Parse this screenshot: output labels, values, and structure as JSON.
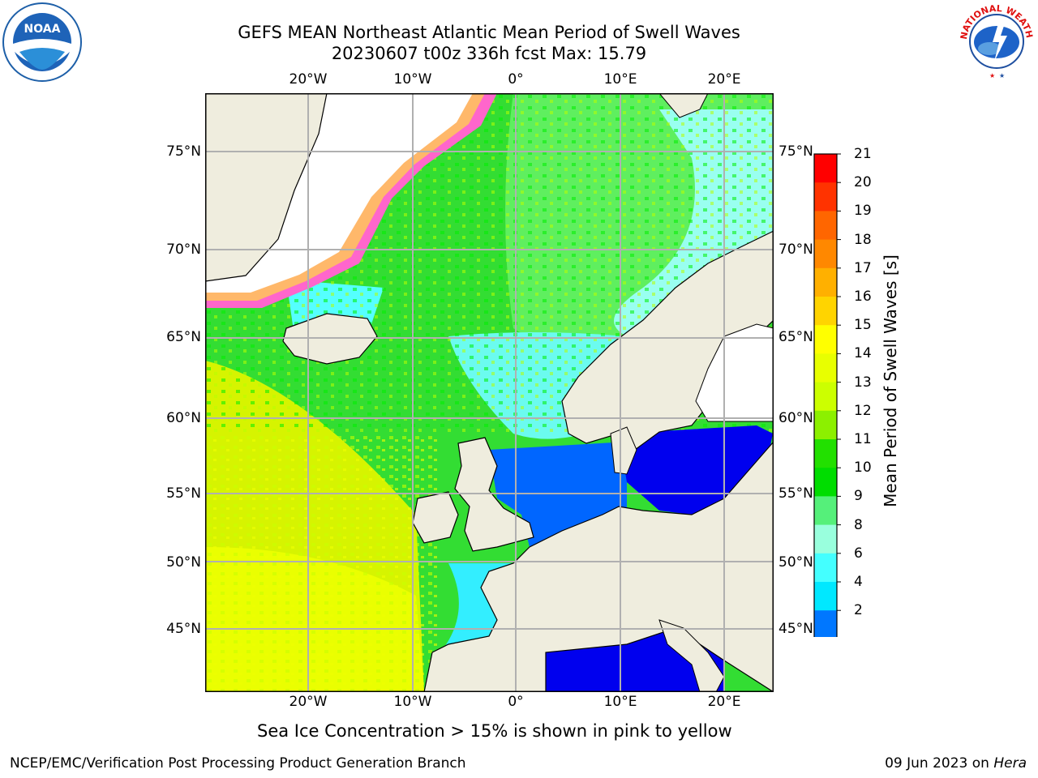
{
  "title": {
    "line1": "GEFS MEAN Northeast Atlantic Mean Period of Swell Waves",
    "line2": "20230607 t00z 336h fcst   Max: 15.79"
  },
  "map": {
    "lon_labels": [
      "20°W",
      "10°W",
      "0°",
      "10°E",
      "20°E"
    ],
    "lat_labels": [
      "75°N",
      "70°N",
      "65°N",
      "60°N",
      "55°N",
      "50°N",
      "45°N"
    ],
    "colors": {
      "land": "#efedde",
      "ice": "#ffffff",
      "coast": "#000000",
      "grid": "#b0b0b0"
    }
  },
  "colorbar": {
    "label": "Mean Period of Swell Waves [s]",
    "ticks": [
      "21",
      "20",
      "19",
      "18",
      "17",
      "16",
      "15",
      "14",
      "13",
      "12",
      "11",
      "10",
      "9",
      "8",
      "6",
      "4",
      "2"
    ],
    "colors": [
      "#ff0000",
      "#ff3300",
      "#ff6600",
      "#ff8800",
      "#ffb000",
      "#ffd400",
      "#ffff00",
      "#e8ff00",
      "#ccff00",
      "#8cf000",
      "#22e000",
      "#00dd00",
      "#55f07a",
      "#99ffdd",
      "#44ffff",
      "#00e8ff",
      "#0077ff",
      "#0000ee"
    ]
  },
  "note": "Sea Ice Concentration > 15% is shown in pink to yellow",
  "footer": {
    "left": "NCEP/EMC/Verification Post Processing Product Generation Branch",
    "date": "09 Jun 2023 on",
    "host": "Hera"
  },
  "logos": {
    "noaa_text": "NOAA",
    "nws_text": "NATIONAL WEATHER SERVICE"
  }
}
